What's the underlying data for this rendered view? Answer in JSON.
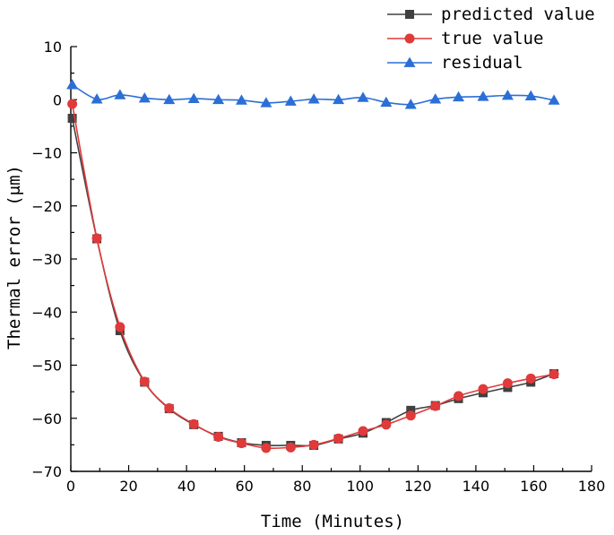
{
  "chart_data": {
    "type": "line",
    "title": "",
    "xlabel": "Time (Minutes)",
    "ylabel": "Thermal error (μm)",
    "xlim": [
      0,
      180
    ],
    "ylim": [
      -70,
      10
    ],
    "x_ticks": [
      0,
      20,
      40,
      60,
      80,
      100,
      120,
      140,
      160,
      180
    ],
    "y_ticks": [
      10,
      0,
      -10,
      -20,
      -30,
      -40,
      -50,
      -60,
      -70
    ],
    "grid": false,
    "legend_position": "top-right",
    "x": [
      0.5,
      9,
      17,
      25.5,
      34,
      42.5,
      51,
      59,
      67.5,
      76,
      84,
      92.5,
      101,
      109,
      117.5,
      126,
      134,
      142.5,
      151,
      159,
      167
    ],
    "series": [
      {
        "name": "predicted value",
        "color": "#404040",
        "marker": "square",
        "values": [
          -3.5,
          -26.2,
          -43.5,
          -53.2,
          -58.2,
          -61.2,
          -63.4,
          -64.6,
          -65.1,
          -65.1,
          -65.1,
          -63.9,
          -62.8,
          -60.8,
          -58.5,
          -57.6,
          -56.3,
          -55.2,
          -54.2,
          -53.2,
          -51.6
        ]
      },
      {
        "name": "true value",
        "color": "#e03a3a",
        "marker": "circle",
        "values": [
          -0.8,
          -26.1,
          -42.8,
          -53.1,
          -58.1,
          -61.1,
          -63.5,
          -64.7,
          -65.6,
          -65.5,
          -65.0,
          -63.8,
          -62.4,
          -61.2,
          -59.5,
          -57.7,
          -55.8,
          -54.5,
          -53.4,
          -52.5,
          -51.7
        ]
      },
      {
        "name": "residual",
        "color": "#2b6fd6",
        "marker": "triangle",
        "values": [
          2.8,
          0.1,
          0.9,
          0.3,
          0.0,
          0.2,
          0.0,
          -0.1,
          -0.6,
          -0.3,
          0.1,
          0.0,
          0.4,
          -0.5,
          -0.9,
          0.1,
          0.5,
          0.6,
          0.8,
          0.7,
          -0.1
        ]
      }
    ]
  }
}
